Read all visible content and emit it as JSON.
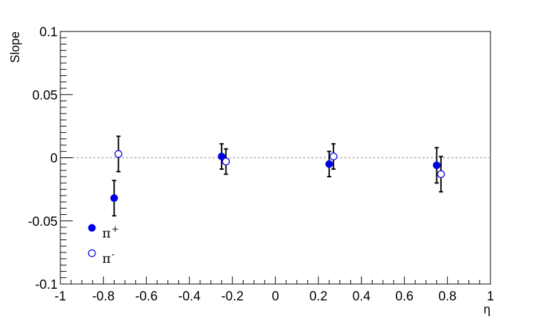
{
  "chart_data": {
    "type": "scatter",
    "title": "",
    "xlabel": "η",
    "ylabel": "Slope",
    "xlim": [
      -1,
      1
    ],
    "ylim": [
      -0.1,
      0.1
    ],
    "x_ticks": [
      "-1",
      "-0.8",
      "-0.6",
      "-0.4",
      "-0.2",
      "0",
      "0.2",
      "0.4",
      "0.6",
      "0.8",
      "1"
    ],
    "y_ticks": [
      "-0.1",
      "-0.05",
      "0",
      "0.05",
      "0.1"
    ],
    "reference_line": {
      "y": 0,
      "style": "dotted",
      "color": "#b0b0b0"
    },
    "legend_position": "bottom-left",
    "series": [
      {
        "name": "π+",
        "label_base": "π",
        "label_sup": "+",
        "marker": "filled-circle",
        "color": "#0000e6",
        "x": [
          -0.75,
          -0.25,
          0.25,
          0.75
        ],
        "y": [
          -0.032,
          0.001,
          -0.005,
          -0.006
        ],
        "err": [
          0.014,
          0.01,
          0.01,
          0.014
        ]
      },
      {
        "name": "π-",
        "label_base": "π",
        "label_sup": "-",
        "marker": "open-circle",
        "color": "#0000e6",
        "x": [
          -0.73,
          -0.23,
          0.27,
          0.77
        ],
        "y": [
          0.003,
          -0.003,
          0.001,
          -0.013
        ],
        "err": [
          0.014,
          0.01,
          0.01,
          0.014
        ]
      }
    ]
  }
}
